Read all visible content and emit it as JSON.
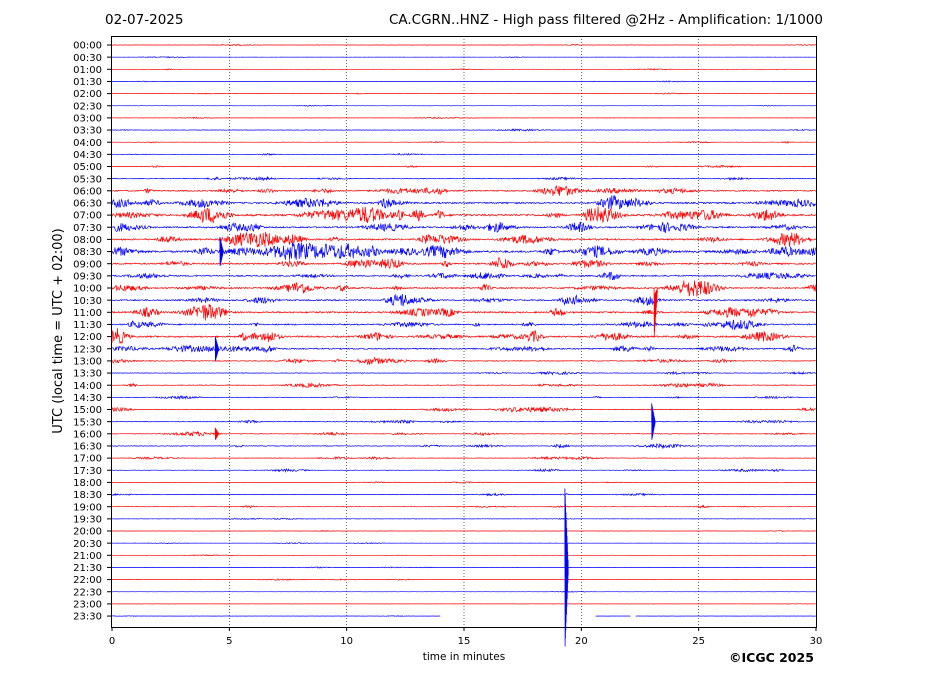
{
  "header": {
    "date": "02-07-2025",
    "title": "CA.CGRN..HNZ - High pass filtered @2Hz - Amplification: 1/1000"
  },
  "copyright": "©ICGC 2025",
  "colors": {
    "red_trace": "#ff0000",
    "blue_trace": "#0000ff",
    "grid": "#000000"
  },
  "chart_data": {
    "type": "line",
    "subtype": "helicorder",
    "title": "CA.CGRN..HNZ - High pass filtered @2Hz - Amplification: 1/1000",
    "xlabel": "time in minutes",
    "ylabel": "UTC (local time = UTC + 02:00)",
    "xlim": [
      0,
      30
    ],
    "xticks": [
      0,
      5,
      10,
      15,
      20,
      25,
      30
    ],
    "vertical_grid": "dotted at 5, 10, 15, 20, 25",
    "row_labels": [
      "00:00",
      "00:30",
      "01:00",
      "01:30",
      "02:00",
      "02:30",
      "03:00",
      "03:30",
      "04:00",
      "04:30",
      "05:00",
      "05:30",
      "06:00",
      "06:30",
      "07:00",
      "07:30",
      "08:00",
      "08:30",
      "09:00",
      "09:30",
      "10:00",
      "10:30",
      "11:00",
      "11:30",
      "12:00",
      "12:30",
      "13:00",
      "13:30",
      "14:00",
      "14:30",
      "15:00",
      "15:30",
      "16:00",
      "16:30",
      "17:00",
      "17:30",
      "18:00",
      "18:30",
      "19:00",
      "19:30",
      "20:00",
      "20:30",
      "21:00",
      "21:30",
      "22:00",
      "22:30",
      "23:00",
      "23:30"
    ],
    "row_color_pattern": [
      "red",
      "blue"
    ],
    "noise_level": [
      0.3,
      0.2,
      0.3,
      0.3,
      0.3,
      0.3,
      0.3,
      0.5,
      0.5,
      0.4,
      0.5,
      0.8,
      1.6,
      2.0,
      2.6,
      2.0,
      2.1,
      2.6,
      2.0,
      1.6,
      1.8,
      1.8,
      2.1,
      1.7,
      2.1,
      1.6,
      1.1,
      0.6,
      0.9,
      0.6,
      0.9,
      0.8,
      0.8,
      0.8,
      0.6,
      0.6,
      0.4,
      0.5,
      0.6,
      0.4,
      0.3,
      0.3,
      0.2,
      0.3,
      0.3,
      0.2,
      0.2,
      0.2
    ],
    "events": [
      {
        "row": 20,
        "minute": 23.1,
        "amp_rows": 4.0,
        "dir": "down"
      },
      {
        "row": 25,
        "minute": 4.4,
        "amp_rows": 1.0,
        "dir": "both"
      },
      {
        "row": 43,
        "minute": 19.3,
        "amp_rows": 6.5,
        "dir": "both"
      },
      {
        "row": 32,
        "minute": 4.4,
        "amp_rows": 0.5,
        "dir": "both"
      },
      {
        "row": 17,
        "minute": 4.6,
        "amp_rows": 1.2,
        "dir": "both"
      },
      {
        "row": 31,
        "minute": 23.0,
        "amp_rows": 1.5,
        "dir": "both"
      }
    ],
    "last_row_gaps": [
      [
        14,
        20.6
      ],
      [
        22.1,
        22.3
      ]
    ]
  }
}
